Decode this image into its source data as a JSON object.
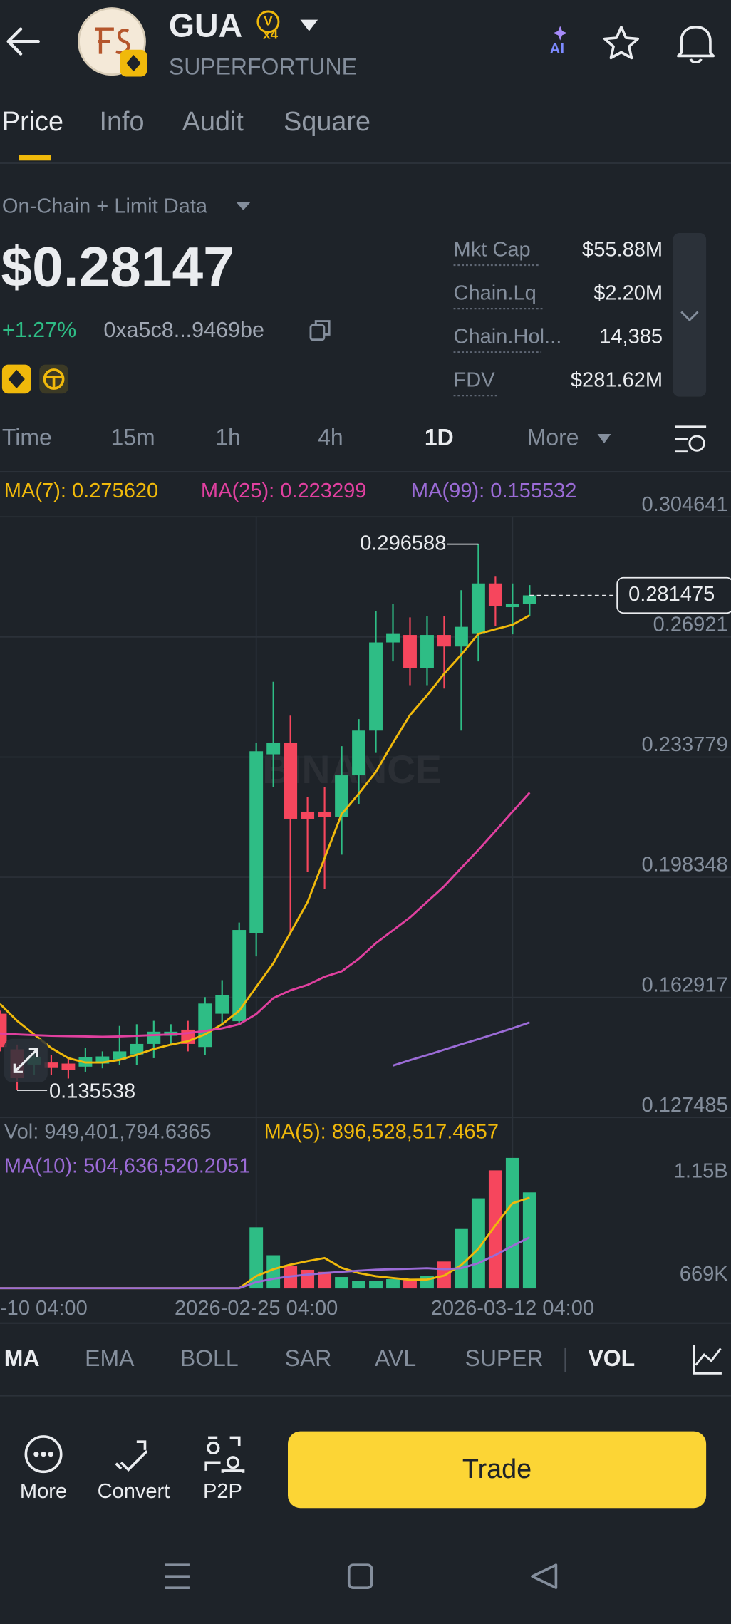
{
  "header": {
    "symbol": "GUA",
    "badge": "V",
    "badge_multiplier": "x4",
    "name": "SUPERFORTUNE",
    "ai": "AI"
  },
  "tabs": [
    "Price",
    "Info",
    "Audit",
    "Square"
  ],
  "source": "On-Chain + Limit Data",
  "price": "$0.28147",
  "change": "+1.27%",
  "address": "0xa5c8...9469be",
  "stats": [
    {
      "label": "Mkt Cap",
      "value": "$55.88M"
    },
    {
      "label": "Chain.Lq",
      "value": "$2.20M"
    },
    {
      "label": "Chain.Hol...",
      "value": "14,385"
    },
    {
      "label": "FDV",
      "value": "$281.62M"
    }
  ],
  "intervals": [
    "Time",
    "15m",
    "1h",
    "4h",
    "1D",
    "More"
  ],
  "chart_data": {
    "type": "candlestick",
    "watermark": "BINANCE",
    "up_color": "#2ebd85",
    "down_color": "#f6465d",
    "categories": [
      "-10 04:00",
      null,
      null,
      null,
      null,
      null,
      null,
      null,
      null,
      null,
      null,
      null,
      null,
      null,
      null,
      "2026-02-25 04:00",
      null,
      null,
      null,
      null,
      null,
      null,
      null,
      null,
      null,
      null,
      null,
      null,
      null,
      null,
      "2026-03-12 04:00",
      null
    ],
    "open": [
      0.1581,
      0.1476,
      0.1431,
      0.1437,
      0.1434,
      0.1425,
      0.1434,
      0.1446,
      0.1461,
      0.1492,
      0.1516,
      0.1534,
      0.1483,
      0.1581,
      0.1559,
      0.1819,
      0.2346,
      0.238,
      0.2177,
      0.2177,
      0.2162,
      0.2284,
      0.2416,
      0.2676,
      0.2698,
      0.26,
      0.2698,
      0.2664,
      0.2701,
      0.285,
      0.278,
      0.2789
    ],
    "high": [
      0.159,
      0.149,
      0.147,
      0.146,
      0.145,
      0.148,
      0.147,
      0.1545,
      0.155,
      0.156,
      0.155,
      0.156,
      0.163,
      0.168,
      0.185,
      0.238,
      0.256,
      0.246,
      0.222,
      0.225,
      0.237,
      0.245,
      0.2768,
      0.279,
      0.275,
      0.2753,
      0.2753,
      0.283,
      0.296588,
      0.287,
      0.285,
      0.2845
    ],
    "low": [
      0.147,
      0.135538,
      0.14,
      0.14,
      0.139,
      0.141,
      0.142,
      0.143,
      0.143,
      0.145,
      0.149,
      0.147,
      0.146,
      0.155,
      0.155,
      0.175,
      0.225,
      0.182,
      0.2,
      0.195,
      0.205,
      0.22,
      0.235,
      0.262,
      0.255,
      0.255,
      0.254,
      0.2416,
      0.262,
      0.2725,
      0.27,
      0.2755
    ],
    "close": [
      0.1483,
      0.1391,
      0.1452,
      0.1421,
      0.1416,
      0.1452,
      0.1455,
      0.147,
      0.1492,
      0.1528,
      0.1528,
      0.1492,
      0.1611,
      0.1636,
      0.1828,
      0.2355,
      0.238,
      0.2156,
      0.2156,
      0.2162,
      0.2284,
      0.2416,
      0.2676,
      0.2701,
      0.26,
      0.2698,
      0.2664,
      0.2722,
      0.285,
      0.2783,
      0.2789,
      0.281475
    ],
    "ylim": [
      0.127485,
      0.304641
    ],
    "yticks": [
      0.304641,
      0.26921,
      0.233779,
      0.198348,
      0.162917,
      0.127485
    ],
    "series": [
      {
        "name": "MA(7): 0.275620",
        "color": "#f0b90b",
        "values": [
          0.161,
          0.156,
          0.152,
          0.148,
          0.145,
          0.1437,
          0.1437,
          0.1445,
          0.146,
          0.1477,
          0.149,
          0.15,
          0.152,
          0.155,
          0.159,
          0.166,
          0.173,
          0.182,
          0.191,
          0.204,
          0.217,
          0.223,
          0.2294,
          0.238,
          0.2462,
          0.252,
          0.2584,
          0.264,
          0.2701,
          0.2715,
          0.2728,
          0.27562
        ]
      },
      {
        "name": "MA(25): 0.223299",
        "color": "#e0409f",
        "values": [
          0.1523,
          0.152,
          0.1518,
          0.1516,
          0.1515,
          0.1514,
          0.1513,
          0.1514,
          0.1516,
          0.1518,
          0.152,
          0.1524,
          0.153,
          0.1538,
          0.155,
          0.158,
          0.1627,
          0.165,
          0.1666,
          0.169,
          0.1706,
          0.1743,
          0.1789,
          0.1827,
          0.1865,
          0.1911,
          0.1957,
          0.2011,
          0.2064,
          0.212,
          0.2177,
          0.223299
        ]
      },
      {
        "name": "MA(99): 0.155532",
        "color": "#9b6bd6",
        "values": [
          null,
          null,
          null,
          null,
          null,
          null,
          null,
          null,
          null,
          null,
          null,
          null,
          null,
          null,
          null,
          null,
          null,
          null,
          null,
          null,
          null,
          null,
          null,
          0.1428,
          0.1444,
          0.1459,
          0.1475,
          0.1491,
          0.1506,
          0.1522,
          0.1538,
          0.155532
        ]
      }
    ],
    "volume": {
      "title": "Vol: 949,401,794.6365",
      "values": [
        3000000,
        3000000,
        3000000,
        3000000,
        3000000,
        3000000,
        3000000,
        3000000,
        3000000,
        3000000,
        3000000,
        3000000,
        3000000,
        3000000,
        3000000,
        604000000,
        328000000,
        225000000,
        184000000,
        164000000,
        113000000,
        72000000,
        72000000,
        92000000,
        82000000,
        123000000,
        266000000,
        594000000,
        891000000,
        1167000000,
        1290000000,
        949401794.6365
      ],
      "ylim": [
        0,
        1300000000
      ],
      "yticks": [
        {
          "value": 669000,
          "label": "669K"
        },
        {
          "value": 1150000000,
          "label": "1.15B"
        }
      ],
      "series": [
        {
          "name": "MA(5): 896,528,517.4657",
          "color": "#f0b90b",
          "values": [
            3000000,
            3000000,
            3000000,
            3000000,
            3000000,
            3000000,
            3000000,
            3000000,
            3000000,
            3000000,
            3000000,
            3000000,
            3000000,
            3000000,
            3000000,
            123000000,
            190000000,
            235000000,
            270000000,
            301000000,
            203000000,
            152000000,
            121000000,
            103000000,
            86000000,
            88000000,
            127000000,
            231000000,
            391000000,
            624000000,
            842000000,
            896528517.4657
          ]
        },
        {
          "name": "MA(10): 504,636,520.2051",
          "color": "#9b6bd6",
          "values": [
            3000000,
            3000000,
            3000000,
            3000000,
            3000000,
            3000000,
            3000000,
            3000000,
            3000000,
            3000000,
            3000000,
            3000000,
            3000000,
            3000000,
            3000000,
            63000000,
            96000000,
            119000000,
            137000000,
            152000000,
            165000000,
            175000000,
            185000000,
            190000000,
            195000000,
            200000000,
            190000000,
            200000000,
            250000000,
            330000000,
            420000000,
            504636520.2051
          ]
        }
      ]
    }
  },
  "indicators": [
    "MA",
    "EMA",
    "BOLL",
    "SAR",
    "AVL",
    "SUPER",
    "VOL"
  ],
  "actions": [
    "More",
    "Convert",
    "P2P"
  ],
  "trade": "Trade"
}
